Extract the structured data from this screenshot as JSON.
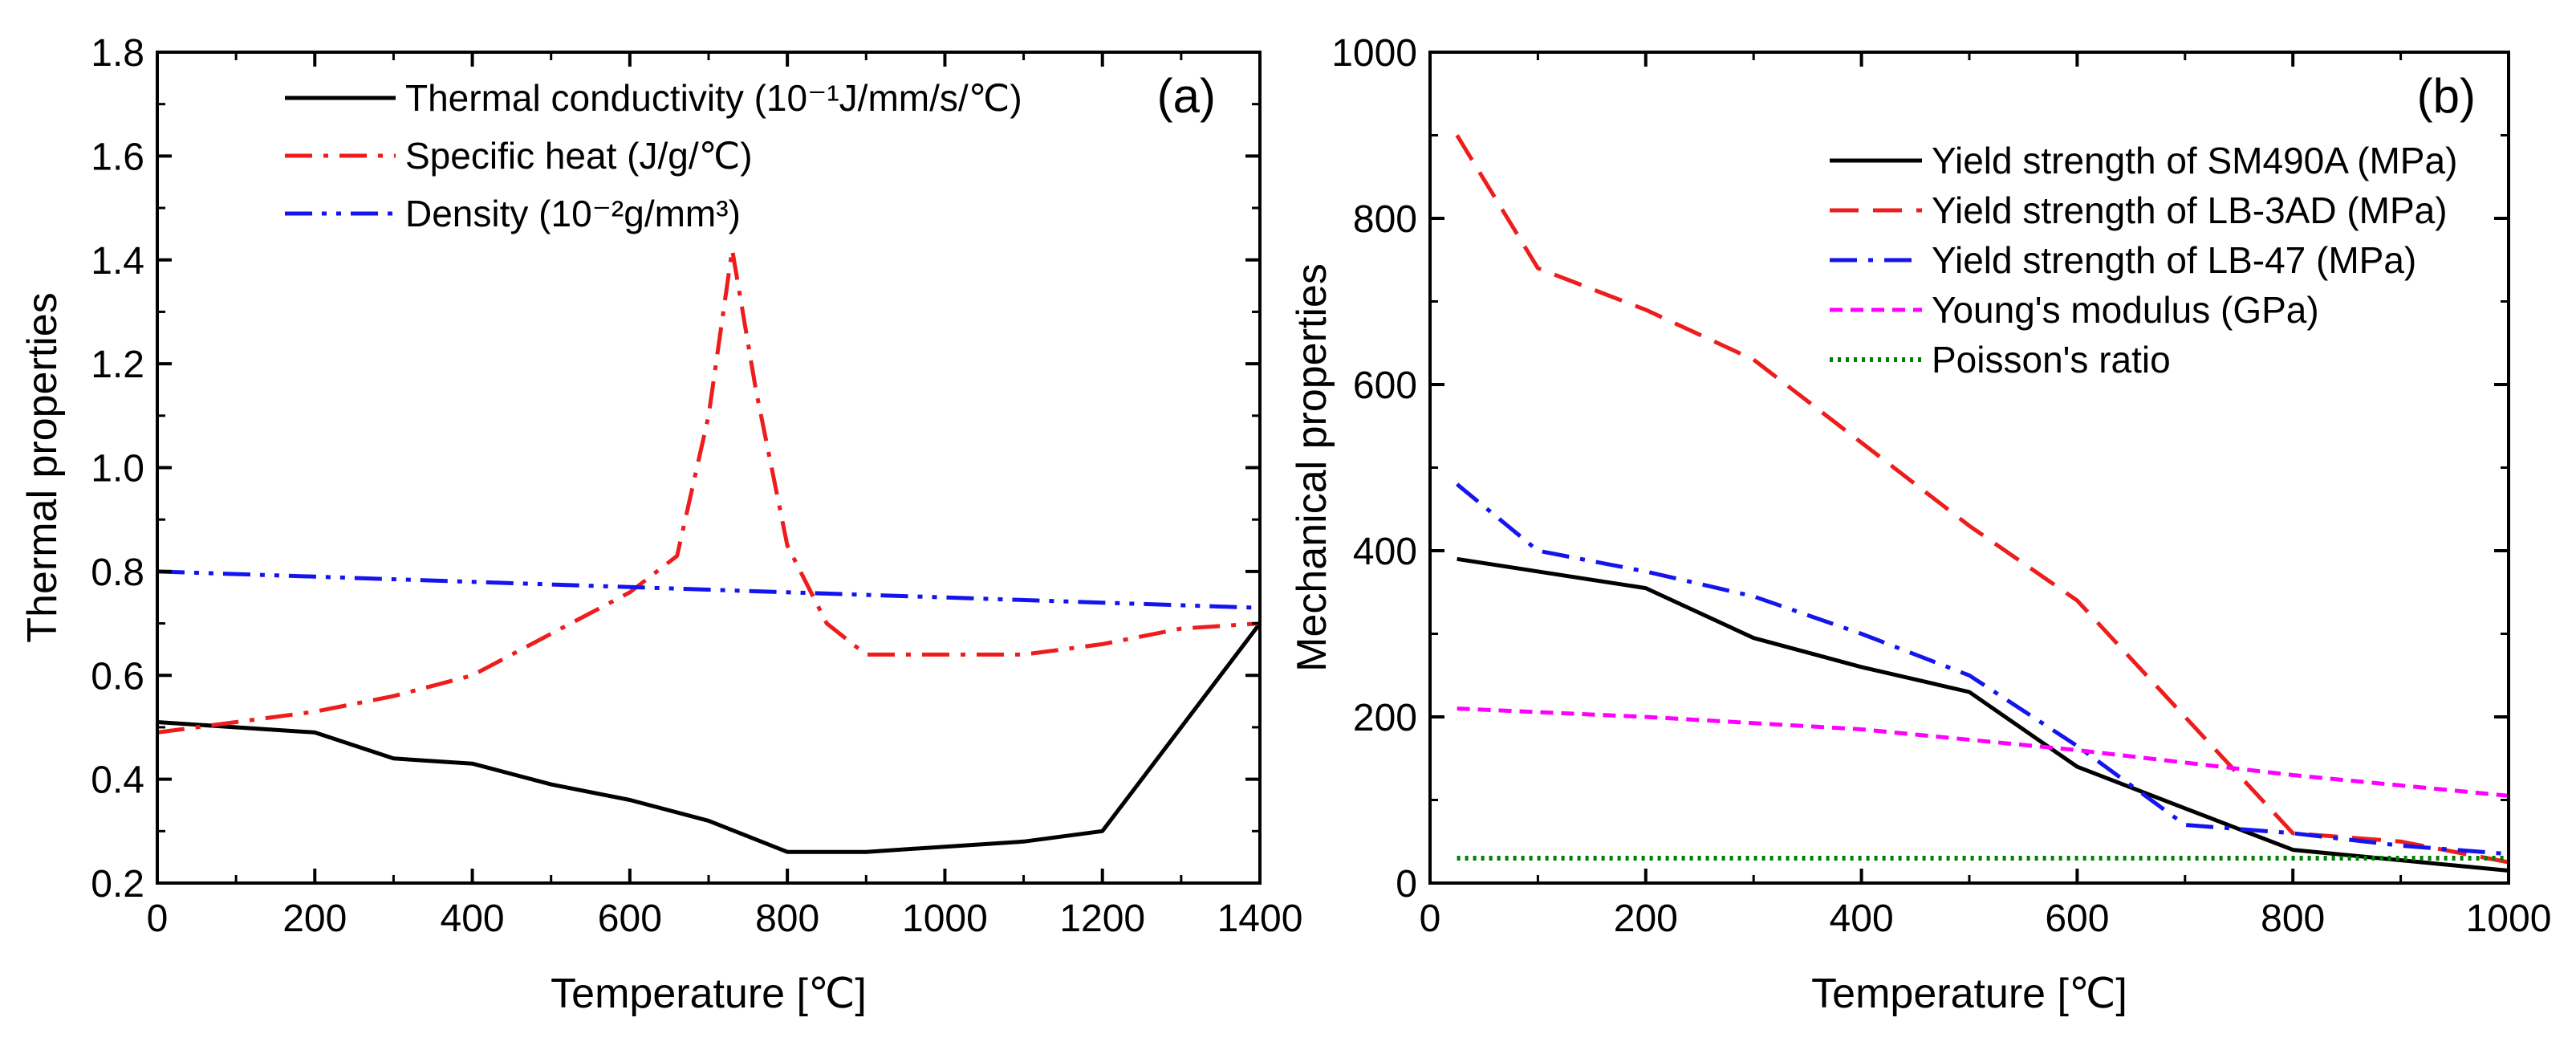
{
  "chart_data": [
    {
      "type": "line",
      "panel_label": "(a)",
      "xlabel": "Temperature [℃]",
      "ylabel": "Thermal properties",
      "xlim": [
        0,
        1400
      ],
      "ylim": [
        0.2,
        1.8
      ],
      "xticks": [
        "0",
        "200",
        "400",
        "600",
        "800",
        "1000",
        "1200",
        "1400"
      ],
      "yticks": [
        "0.2",
        "0.4",
        "0.6",
        "0.8",
        "1.0",
        "1.2",
        "1.4",
        "1.6",
        "1.8"
      ],
      "legend_position": "top-right",
      "series": [
        {
          "name": "Thermal conductivity (10⁻¹J/mm/s/℃)",
          "color": "#000000",
          "dash": "solid",
          "x": [
            0,
            200,
            300,
            400,
            500,
            600,
            700,
            800,
            900,
            1000,
            1100,
            1200,
            1400
          ],
          "y": [
            0.51,
            0.49,
            0.44,
            0.43,
            0.39,
            0.36,
            0.32,
            0.26,
            0.26,
            0.27,
            0.28,
            0.3,
            0.7
          ]
        },
        {
          "name": "Specific heat (J/g/℃)",
          "color": "#ee1c1c",
          "dash": "dashdot",
          "x": [
            0,
            100,
            200,
            300,
            400,
            500,
            600,
            660,
            700,
            730,
            760,
            800,
            850,
            900,
            1000,
            1100,
            1200,
            1300,
            1400
          ],
          "y": [
            0.49,
            0.51,
            0.53,
            0.56,
            0.6,
            0.68,
            0.76,
            0.83,
            1.1,
            1.42,
            1.15,
            0.85,
            0.7,
            0.64,
            0.64,
            0.64,
            0.66,
            0.69,
            0.7
          ]
        },
        {
          "name": "Density (10⁻²g/mm³)",
          "color": "#1414ee",
          "dash": "dashdotdot",
          "x": [
            0,
            200,
            400,
            600,
            800,
            1000,
            1200,
            1400
          ],
          "y": [
            0.8,
            0.79,
            0.78,
            0.77,
            0.76,
            0.75,
            0.74,
            0.73
          ]
        }
      ]
    },
    {
      "type": "line",
      "panel_label": "(b)",
      "xlabel": "Temperature [℃]",
      "ylabel": "Mechanical properties",
      "xlim": [
        0,
        1000
      ],
      "ylim": [
        0,
        1000
      ],
      "xticks": [
        "0",
        "200",
        "400",
        "600",
        "800",
        "1000"
      ],
      "yticks": [
        "0",
        "200",
        "400",
        "600",
        "800",
        "1000"
      ],
      "legend_position": "top-right",
      "series": [
        {
          "name": "Yield strength of SM490A (MPa)",
          "color": "#000000",
          "dash": "solid",
          "x": [
            25,
            200,
            300,
            400,
            500,
            600,
            700,
            800,
            1000
          ],
          "y": [
            390,
            355,
            295,
            260,
            230,
            140,
            90,
            40,
            15
          ]
        },
        {
          "name": "Yield strength of LB-3AD (MPa)",
          "color": "#ee1c1c",
          "dash": "dash",
          "x": [
            25,
            100,
            200,
            300,
            400,
            500,
            600,
            700,
            800,
            900,
            1000
          ],
          "y": [
            900,
            740,
            690,
            630,
            530,
            430,
            340,
            200,
            60,
            50,
            25
          ]
        },
        {
          "name": "Yield strength of LB-47 (MPa)",
          "color": "#1414ee",
          "dash": "dashdot",
          "x": [
            25,
            100,
            200,
            300,
            400,
            500,
            600,
            700,
            800,
            900,
            1000
          ],
          "y": [
            480,
            400,
            375,
            345,
            300,
            250,
            165,
            70,
            60,
            45,
            35
          ]
        },
        {
          "name": "Young's modulus (GPa)",
          "color": "#ff00ff",
          "dash": "shortdash",
          "x": [
            25,
            200,
            400,
            600,
            800,
            1000
          ],
          "y": [
            210,
            200,
            185,
            160,
            130,
            105
          ]
        },
        {
          "name": "Poisson's ratio",
          "color": "#008000",
          "dash": "dot",
          "x": [
            25,
            1000
          ],
          "y": [
            30,
            30
          ]
        }
      ]
    }
  ]
}
